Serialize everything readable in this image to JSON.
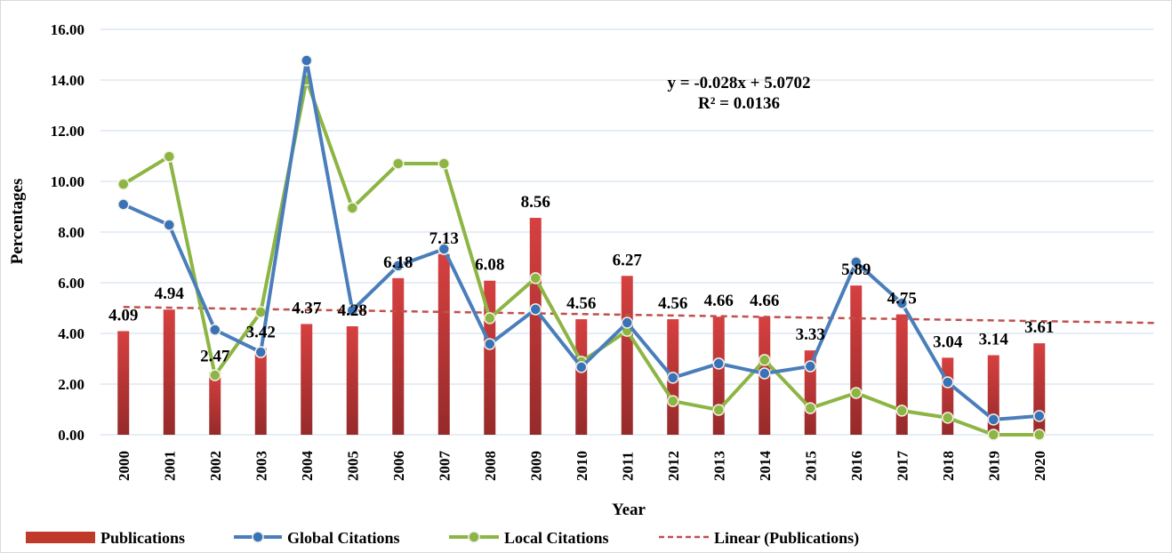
{
  "chart_data": {
    "type": "bar+line",
    "title": "",
    "xlabel": "Year",
    "ylabel": "Percentages",
    "ylim": [
      0,
      16
    ],
    "yticks": [
      "0.00",
      "2.00",
      "4.00",
      "6.00",
      "8.00",
      "10.00",
      "12.00",
      "14.00",
      "16.00"
    ],
    "grid": true,
    "legend_position": "bottom",
    "categories": [
      "2000",
      "2001",
      "2002",
      "2003",
      "2004",
      "2005",
      "2006",
      "2007",
      "2008",
      "2009",
      "2010",
      "2011",
      "2012",
      "2013",
      "2014",
      "2015",
      "2016",
      "2017",
      "2018",
      "2019",
      "2020"
    ],
    "series": [
      {
        "name": "Publications",
        "type": "bar",
        "color": "#c0392b",
        "values": [
          4.09,
          4.94,
          2.47,
          3.42,
          4.37,
          4.28,
          6.18,
          7.13,
          6.08,
          8.56,
          4.56,
          6.27,
          4.56,
          4.66,
          4.66,
          3.33,
          5.89,
          4.75,
          3.04,
          3.14,
          3.61
        ],
        "labels": [
          "4.09",
          "4.94",
          "2.47",
          "3.42",
          "4.37",
          "4.28",
          "6.18",
          "7.13",
          "6.08",
          "8.56",
          "4.56",
          "6.27",
          "4.56",
          "4.66",
          "4.66",
          "3.33",
          "5.89",
          "4.75",
          "3.04",
          "3.14",
          "3.61"
        ]
      },
      {
        "name": "Global Citations",
        "type": "line",
        "color": "#4a7ebb",
        "values": [
          9.09,
          8.28,
          4.14,
          3.26,
          14.77,
          4.91,
          6.67,
          7.33,
          3.58,
          4.95,
          2.67,
          4.42,
          2.25,
          2.81,
          2.42,
          2.7,
          6.81,
          5.19,
          2.07,
          0.6,
          0.74
        ]
      },
      {
        "name": "Local Citations",
        "type": "line",
        "color": "#8db544",
        "values": [
          9.89,
          10.98,
          2.35,
          4.84,
          14.0,
          8.95,
          10.7,
          10.7,
          4.6,
          6.18,
          2.88,
          4.1,
          1.33,
          0.98,
          2.95,
          1.05,
          1.65,
          0.95,
          0.67,
          0,
          0
        ]
      }
    ],
    "trendline": {
      "name": "Linear (Publications)",
      "slope": -0.028,
      "intercept": 5.0702,
      "color": "#c0504d",
      "equation": "y = -0.028x + 5.0702",
      "r2": "R² = 0.0136"
    }
  }
}
